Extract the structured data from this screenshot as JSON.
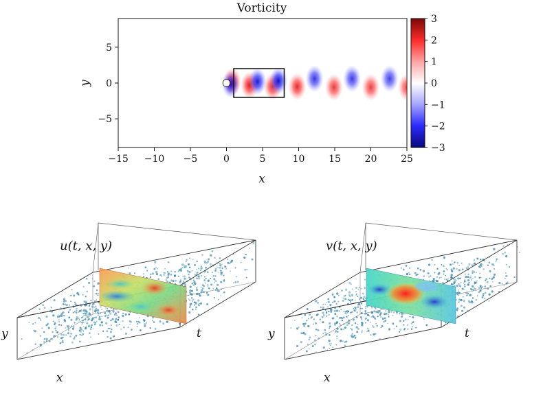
{
  "chart_data": [
    {
      "type": "heatmap",
      "title": "Vorticity",
      "xlabel": "x",
      "ylabel": "y",
      "xlim": [
        -15,
        25
      ],
      "ylim": [
        -9,
        9
      ],
      "xticks": [
        "−15",
        "−10",
        "−5",
        "0",
        "5",
        "10",
        "15",
        "20",
        "25"
      ],
      "xtick_values": [
        -15,
        -10,
        -5,
        0,
        5,
        10,
        15,
        20,
        25
      ],
      "yticks": [
        "5",
        "0",
        "−5"
      ],
      "ytick_values": [
        5,
        0,
        -5
      ],
      "colorbar": {
        "range": [
          -3,
          3
        ],
        "ticks": [
          "3",
          "2",
          "1",
          "0",
          "−1",
          "−2",
          "−3"
        ],
        "tick_values": [
          3,
          2,
          1,
          0,
          -1,
          -2,
          -3
        ],
        "colors": [
          "#08087a",
          "#2b2bff",
          "#a8a8ff",
          "#ffffff",
          "#ffa8a8",
          "#ff2b2b",
          "#7a0808"
        ]
      },
      "cylinder": {
        "x": 0,
        "y": 0,
        "radius": 0.5
      },
      "subdomain_box": {
        "x": [
          1,
          8
        ],
        "y": [
          -2,
          2
        ]
      },
      "vortices": [
        {
          "x": 0.8,
          "y": 0.2,
          "w": 2.6
        },
        {
          "x": 0.6,
          "y": -0.2,
          "w": -2.2
        },
        {
          "x": 3.2,
          "y": -0.3,
          "w": 2.6
        },
        {
          "x": 4.3,
          "y": 0.2,
          "w": -2.5
        },
        {
          "x": 6.4,
          "y": -0.5,
          "w": 2.3
        },
        {
          "x": 7.2,
          "y": 0.3,
          "w": -2.7
        },
        {
          "x": 9.8,
          "y": -0.5,
          "w": 2.2
        },
        {
          "x": 12.2,
          "y": 0.6,
          "w": -2.0
        },
        {
          "x": 14.9,
          "y": -0.6,
          "w": 1.9
        },
        {
          "x": 17.4,
          "y": 0.6,
          "w": -1.9
        },
        {
          "x": 20.0,
          "y": -0.6,
          "w": 1.8
        },
        {
          "x": 22.6,
          "y": 0.6,
          "w": -1.8
        },
        {
          "x": 25.0,
          "y": -0.6,
          "w": 1.7
        }
      ]
    },
    {
      "type": "scatter",
      "panel": "u",
      "label": "u(t, x, y)",
      "axis_labels": {
        "x": "x",
        "y": "y",
        "t": "t"
      },
      "slice_colors": [
        "#ff7a4a",
        "#ffb04a",
        "#d8e860",
        "#8ee08a",
        "#49c9c8",
        "#3a7fd6",
        "#e83a2a"
      ]
    },
    {
      "type": "scatter",
      "panel": "v",
      "label": "v(t, x, y)",
      "axis_labels": {
        "x": "x",
        "y": "y",
        "t": "t"
      },
      "slice_colors": [
        "#49d7c8",
        "#6fe0a8",
        "#ff3a2a",
        "#ff8a2a",
        "#3a5fd6",
        "#7ec0ff"
      ]
    }
  ]
}
